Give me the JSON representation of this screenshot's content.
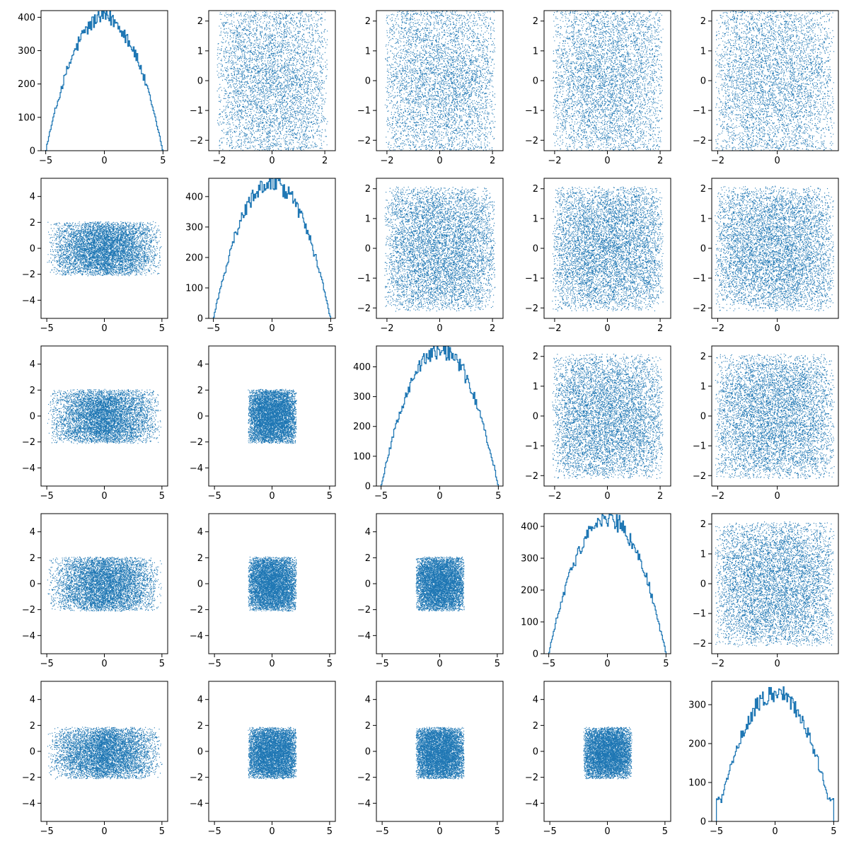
{
  "chart_data": {
    "type": "scatter",
    "layout": "5x5 pair plot (corner plot): histograms on the diagonal, scatter plots off the diagonal",
    "grid": false,
    "legend": "none",
    "marker_color": "#1f77b4",
    "dimensions": [
      {
        "index": 0,
        "range": [
          -5,
          5
        ],
        "x_ticks": [
          -5,
          0,
          5
        ],
        "y_ticks": [
          -4,
          -2,
          0,
          2,
          4
        ],
        "distribution": "approximately triangular/quadratic, peak near 0"
      },
      {
        "index": 1,
        "range": [
          -2.1,
          2.1
        ],
        "x_ticks": [
          -2,
          0,
          2
        ],
        "y_ticks": [
          -2,
          -1,
          0,
          1,
          2
        ],
        "distribution": "approximately semicircular"
      },
      {
        "index": 2,
        "range": [
          -2.1,
          2.1
        ],
        "x_ticks": [
          -2,
          0,
          2
        ],
        "y_ticks": [
          -2,
          -1,
          0,
          1,
          2
        ],
        "distribution": "approximately semicircular"
      },
      {
        "index": 3,
        "range": [
          -2.1,
          2.1
        ],
        "x_ticks": [
          -2,
          0,
          2
        ],
        "y_ticks": [
          -2,
          -1,
          0,
          1,
          2
        ],
        "distribution": "approximately semicircular"
      },
      {
        "index": 4,
        "range": [
          -2.1,
          1.9
        ],
        "x_ticks": [
          -2,
          0
        ],
        "y_ticks": [
          -2,
          -1,
          0,
          1,
          2
        ],
        "distribution": "approximately semicircular, slightly skewed"
      }
    ],
    "charts": [
      {
        "row": 0,
        "col": 0,
        "type": "histogram",
        "dim": 0,
        "xlim": [
          -5.4,
          5.4
        ],
        "ylim": [
          0,
          420
        ],
        "x_ticks": [
          -5,
          0,
          5
        ],
        "y_ticks": [
          0,
          100,
          200,
          300,
          400
        ],
        "peak": 400
      },
      {
        "row": 0,
        "col": 1,
        "type": "scatter",
        "x_dim": 1,
        "y_dim": 0,
        "xlim": [
          -2.4,
          2.4
        ],
        "ylim": [
          -2.35,
          2.35
        ],
        "x_ticks": [
          -2,
          0,
          2
        ],
        "y_ticks": [
          -2,
          -1,
          0,
          1,
          2
        ]
      },
      {
        "row": 0,
        "col": 2,
        "type": "scatter",
        "x_dim": 2,
        "y_dim": 0,
        "xlim": [
          -2.4,
          2.4
        ],
        "ylim": [
          -2.35,
          2.35
        ],
        "x_ticks": [
          -2,
          0,
          2
        ],
        "y_ticks": [
          -2,
          -1,
          0,
          1,
          2
        ]
      },
      {
        "row": 0,
        "col": 3,
        "type": "scatter",
        "x_dim": 3,
        "y_dim": 0,
        "xlim": [
          -2.4,
          2.4
        ],
        "ylim": [
          -2.35,
          2.35
        ],
        "x_ticks": [
          -2,
          0,
          2
        ],
        "y_ticks": [
          -2,
          -1,
          0,
          1,
          2
        ]
      },
      {
        "row": 0,
        "col": 4,
        "type": "scatter",
        "x_dim": 4,
        "y_dim": 0,
        "xlim": [
          -2.2,
          2.05
        ],
        "ylim": [
          -2.35,
          2.35
        ],
        "x_ticks": [
          -2,
          0
        ],
        "y_ticks": [
          -2,
          -1,
          0,
          1,
          2
        ]
      },
      {
        "row": 1,
        "col": 0,
        "type": "scatter",
        "x_dim": 0,
        "y_dim": 1,
        "xlim": [
          -5.5,
          5.5
        ],
        "ylim": [
          -5.4,
          5.4
        ],
        "x_ticks": [
          -5,
          0,
          5
        ],
        "y_ticks": [
          -4,
          -2,
          0,
          2,
          4
        ]
      },
      {
        "row": 1,
        "col": 1,
        "type": "histogram",
        "dim": 1,
        "xlim": [
          -5.4,
          5.4
        ],
        "ylim": [
          0,
          460
        ],
        "x_ticks": [
          -5,
          0,
          5
        ],
        "y_ticks": [
          0,
          100,
          200,
          300,
          400
        ],
        "peak": 445
      },
      {
        "row": 1,
        "col": 2,
        "type": "scatter",
        "x_dim": 2,
        "y_dim": 1,
        "xlim": [
          -2.4,
          2.4
        ],
        "ylim": [
          -2.35,
          2.35
        ],
        "x_ticks": [
          -2,
          0,
          2
        ],
        "y_ticks": [
          -2,
          -1,
          0,
          1,
          2
        ]
      },
      {
        "row": 1,
        "col": 3,
        "type": "scatter",
        "x_dim": 3,
        "y_dim": 1,
        "xlim": [
          -2.4,
          2.4
        ],
        "ylim": [
          -2.35,
          2.35
        ],
        "x_ticks": [
          -2,
          0,
          2
        ],
        "y_ticks": [
          -2,
          -1,
          0,
          1,
          2
        ]
      },
      {
        "row": 1,
        "col": 4,
        "type": "scatter",
        "x_dim": 4,
        "y_dim": 1,
        "xlim": [
          -2.2,
          2.05
        ],
        "ylim": [
          -2.35,
          2.35
        ],
        "x_ticks": [
          -2,
          0
        ],
        "y_ticks": [
          -2,
          -1,
          0,
          1,
          2
        ]
      },
      {
        "row": 2,
        "col": 0,
        "type": "scatter",
        "x_dim": 0,
        "y_dim": 2,
        "xlim": [
          -5.5,
          5.5
        ],
        "ylim": [
          -5.4,
          5.4
        ],
        "x_ticks": [
          -5,
          0,
          5
        ],
        "y_ticks": [
          -4,
          -2,
          0,
          2,
          4
        ]
      },
      {
        "row": 2,
        "col": 1,
        "type": "scatter",
        "x_dim": 1,
        "y_dim": 2,
        "xlim": [
          -5.5,
          5.5
        ],
        "ylim": [
          -5.4,
          5.4
        ],
        "x_ticks": [
          -5,
          0,
          5
        ],
        "y_ticks": [
          -4,
          -2,
          0,
          2,
          4
        ]
      },
      {
        "row": 2,
        "col": 2,
        "type": "histogram",
        "dim": 2,
        "xlim": [
          -5.4,
          5.4
        ],
        "ylim": [
          0,
          470
        ],
        "x_ticks": [
          -5,
          0,
          5
        ],
        "y_ticks": [
          0,
          100,
          200,
          300,
          400
        ],
        "peak": 455
      },
      {
        "row": 2,
        "col": 3,
        "type": "scatter",
        "x_dim": 3,
        "y_dim": 2,
        "xlim": [
          -2.4,
          2.4
        ],
        "ylim": [
          -2.35,
          2.35
        ],
        "x_ticks": [
          -2,
          0,
          2
        ],
        "y_ticks": [
          -2,
          -1,
          0,
          1,
          2
        ]
      },
      {
        "row": 2,
        "col": 4,
        "type": "scatter",
        "x_dim": 4,
        "y_dim": 2,
        "xlim": [
          -2.2,
          2.05
        ],
        "ylim": [
          -2.35,
          2.35
        ],
        "x_ticks": [
          -2,
          0
        ],
        "y_ticks": [
          -2,
          -1,
          0,
          1,
          2
        ]
      },
      {
        "row": 3,
        "col": 0,
        "type": "scatter",
        "x_dim": 0,
        "y_dim": 3,
        "xlim": [
          -5.5,
          5.5
        ],
        "ylim": [
          -5.4,
          5.4
        ],
        "x_ticks": [
          -5,
          0,
          5
        ],
        "y_ticks": [
          -4,
          -2,
          0,
          2,
          4
        ]
      },
      {
        "row": 3,
        "col": 1,
        "type": "scatter",
        "x_dim": 1,
        "y_dim": 3,
        "xlim": [
          -5.5,
          5.5
        ],
        "ylim": [
          -5.4,
          5.4
        ],
        "x_ticks": [
          -5,
          0,
          5
        ],
        "y_ticks": [
          -4,
          -2,
          0,
          2,
          4
        ]
      },
      {
        "row": 3,
        "col": 2,
        "type": "scatter",
        "x_dim": 2,
        "y_dim": 3,
        "xlim": [
          -5.5,
          5.5
        ],
        "ylim": [
          -5.4,
          5.4
        ],
        "x_ticks": [
          -5,
          0,
          5
        ],
        "y_ticks": [
          -4,
          -2,
          0,
          2,
          4
        ]
      },
      {
        "row": 3,
        "col": 3,
        "type": "histogram",
        "dim": 3,
        "xlim": [
          -5.4,
          5.4
        ],
        "ylim": [
          0,
          440
        ],
        "x_ticks": [
          -5,
          0,
          5
        ],
        "y_ticks": [
          0,
          100,
          200,
          300,
          400
        ],
        "peak": 425
      },
      {
        "row": 3,
        "col": 4,
        "type": "scatter",
        "x_dim": 4,
        "y_dim": 3,
        "xlim": [
          -2.2,
          2.05
        ],
        "ylim": [
          -2.35,
          2.35
        ],
        "x_ticks": [
          -2,
          0
        ],
        "y_ticks": [
          -2,
          -1,
          0,
          1,
          2
        ]
      },
      {
        "row": 4,
        "col": 0,
        "type": "scatter",
        "x_dim": 0,
        "y_dim": 4,
        "xlim": [
          -5.5,
          5.5
        ],
        "ylim": [
          -5.4,
          5.4
        ],
        "x_ticks": [
          -5,
          0,
          5
        ],
        "y_ticks": [
          -4,
          -2,
          0,
          2,
          4
        ]
      },
      {
        "row": 4,
        "col": 1,
        "type": "scatter",
        "x_dim": 1,
        "y_dim": 4,
        "xlim": [
          -5.5,
          5.5
        ],
        "ylim": [
          -5.4,
          5.4
        ],
        "x_ticks": [
          -5,
          0,
          5
        ],
        "y_ticks": [
          -4,
          -2,
          0,
          2,
          4
        ]
      },
      {
        "row": 4,
        "col": 2,
        "type": "scatter",
        "x_dim": 2,
        "y_dim": 4,
        "xlim": [
          -5.5,
          5.5
        ],
        "ylim": [
          -5.4,
          5.4
        ],
        "x_ticks": [
          -5,
          0,
          5
        ],
        "y_ticks": [
          -4,
          -2,
          0,
          2,
          4
        ]
      },
      {
        "row": 4,
        "col": 3,
        "type": "scatter",
        "x_dim": 3,
        "y_dim": 4,
        "xlim": [
          -5.5,
          5.5
        ],
        "ylim": [
          -5.4,
          5.4
        ],
        "x_ticks": [
          -5,
          0,
          5
        ],
        "y_ticks": [
          -4,
          -2,
          0,
          2,
          4
        ]
      },
      {
        "row": 4,
        "col": 4,
        "type": "histogram",
        "dim": 4,
        "xlim": [
          -5.4,
          5.4
        ],
        "ylim": [
          0,
          360
        ],
        "x_ticks": [
          -5,
          0,
          5
        ],
        "y_ticks": [
          0,
          100,
          200,
          300
        ],
        "peak": 345
      }
    ]
  }
}
